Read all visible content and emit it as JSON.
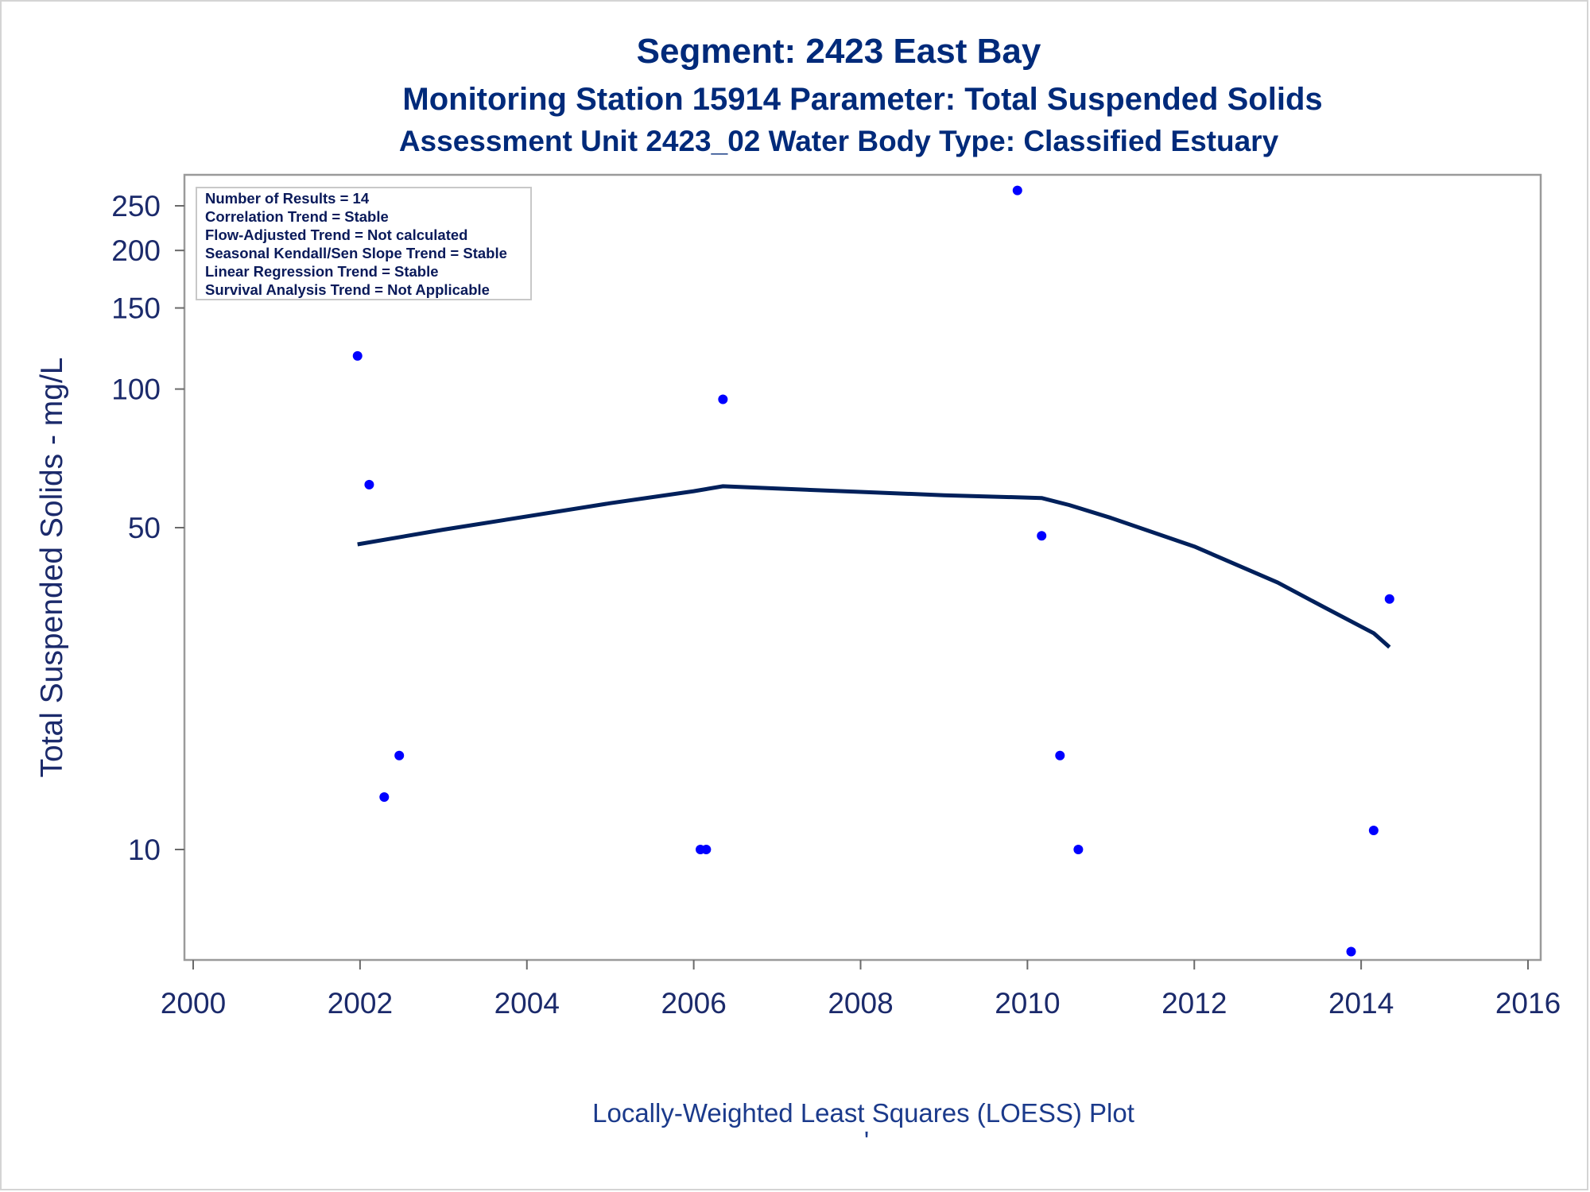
{
  "title_lines": [
    "Segment: 2423  East Bay",
    "Monitoring Station 15914 Parameter: Total Suspended Solids",
    "Assessment Unit 2423_02   Water Body Type: Classified Estuary"
  ],
  "stats_box": [
    "Number of Results = 14",
    "Correlation Trend = Stable",
    "Flow-Adjusted Trend = Not calculated",
    "Seasonal Kendall/Sen Slope Trend = Stable",
    "Linear Regression Trend = Stable",
    "Survival Analysis Trend = Not Applicable"
  ],
  "footnote": "Locally-Weighted Least Squares (LOESS) Plot",
  "footnote_mark": "'",
  "colors": {
    "title": "#002a7a",
    "points": "#0000ff",
    "loess_line": "#00205b",
    "axis_text": "#1b2a6b",
    "frame": "#9a9a9a"
  },
  "chart_data": {
    "type": "scatter",
    "xlabel": "",
    "ylabel": "Total Suspended Solids - mg/L",
    "yscale": "log",
    "xlim": [
      2000,
      2016
    ],
    "ylim": [
      5.8,
      300
    ],
    "x_ticks": [
      "2000",
      "2002",
      "2004",
      "2006",
      "2008",
      "2010",
      "2012",
      "2014",
      "2016"
    ],
    "y_ticks": [
      "10",
      "50",
      "100",
      "150",
      "200",
      "250"
    ],
    "grid": false,
    "points": [
      {
        "x": 2001.97,
        "y": 118
      },
      {
        "x": 2002.11,
        "y": 62
      },
      {
        "x": 2002.29,
        "y": 13
      },
      {
        "x": 2002.47,
        "y": 16
      },
      {
        "x": 2006.08,
        "y": 10
      },
      {
        "x": 2006.15,
        "y": 10
      },
      {
        "x": 2006.35,
        "y": 95
      },
      {
        "x": 2009.88,
        "y": 270
      },
      {
        "x": 2010.17,
        "y": 48
      },
      {
        "x": 2010.39,
        "y": 16
      },
      {
        "x": 2010.61,
        "y": 10
      },
      {
        "x": 2013.88,
        "y": 6
      },
      {
        "x": 2014.15,
        "y": 11
      },
      {
        "x": 2014.34,
        "y": 35
      }
    ],
    "loess_line": [
      {
        "x": 2001.97,
        "y": 46
      },
      {
        "x": 2003.0,
        "y": 49.5
      },
      {
        "x": 2005.0,
        "y": 56.5
      },
      {
        "x": 2006.0,
        "y": 60
      },
      {
        "x": 2006.35,
        "y": 61.5
      },
      {
        "x": 2007.0,
        "y": 60.8
      },
      {
        "x": 2008.0,
        "y": 59.8
      },
      {
        "x": 2009.0,
        "y": 58.8
      },
      {
        "x": 2010.17,
        "y": 58.0
      },
      {
        "x": 2010.5,
        "y": 56.0
      },
      {
        "x": 2011.0,
        "y": 52.5
      },
      {
        "x": 2012.0,
        "y": 45.5
      },
      {
        "x": 2013.0,
        "y": 38.0
      },
      {
        "x": 2013.5,
        "y": 34.0
      },
      {
        "x": 2014.15,
        "y": 29.5
      },
      {
        "x": 2014.34,
        "y": 27.5
      }
    ]
  }
}
